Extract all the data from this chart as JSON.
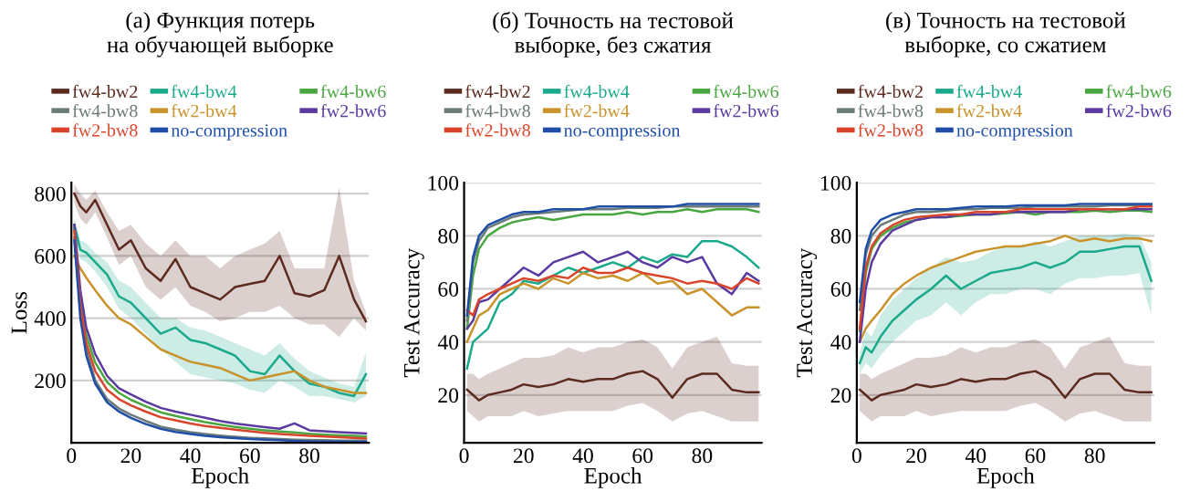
{
  "chart_data": [
    {
      "type": "line",
      "title": "(а) Функция потерь\nна обучающей выборке",
      "xlabel": "Epoch",
      "ylabel": "Loss",
      "xlim": [
        0,
        100
      ],
      "ylim": [
        0,
        835
      ],
      "xticks": [
        0,
        20,
        40,
        60,
        80
      ],
      "yticks": [
        200,
        400,
        600,
        800
      ],
      "grid": "y",
      "legend": "top",
      "x": [
        1,
        3,
        5,
        8,
        12,
        16,
        20,
        25,
        30,
        35,
        40,
        45,
        50,
        55,
        60,
        65,
        70,
        75,
        80,
        85,
        90,
        95,
        99
      ],
      "series": [
        {
          "name": "fw4-bw2",
          "color": "#5c2a1e",
          "values": [
            800,
            760,
            740,
            780,
            700,
            620,
            650,
            560,
            520,
            590,
            500,
            480,
            460,
            500,
            510,
            520,
            600,
            480,
            470,
            490,
            600,
            460,
            390
          ],
          "lower": [
            770,
            720,
            700,
            740,
            660,
            570,
            600,
            500,
            460,
            500,
            440,
            420,
            390,
            400,
            420,
            420,
            440,
            400,
            380,
            380,
            340,
            400,
            360
          ],
          "upper": [
            830,
            800,
            780,
            810,
            740,
            680,
            700,
            640,
            600,
            650,
            600,
            600,
            560,
            600,
            620,
            640,
            680,
            560,
            560,
            560,
            820,
            520,
            420
          ]
        },
        {
          "name": "fw4-bw4",
          "color": "#1aa98a",
          "values": [
            700,
            620,
            610,
            580,
            540,
            470,
            450,
            400,
            350,
            370,
            330,
            320,
            300,
            280,
            230,
            220,
            280,
            230,
            190,
            180,
            160,
            150,
            220
          ],
          "lower": [
            680,
            590,
            580,
            550,
            500,
            430,
            400,
            350,
            300,
            260,
            220,
            210,
            200,
            190,
            170,
            160,
            200,
            180,
            150,
            150,
            140,
            130,
            150
          ],
          "upper": [
            720,
            650,
            640,
            610,
            580,
            520,
            500,
            450,
            400,
            400,
            370,
            360,
            340,
            320,
            300,
            280,
            320,
            270,
            230,
            210,
            190,
            180,
            290
          ]
        },
        {
          "name": "fw4-bw6",
          "color": "#4aa640",
          "values": [
            690,
            465,
            345,
            258,
            195,
            160,
            138,
            117,
            98,
            86,
            76,
            66,
            58,
            51,
            45,
            40,
            36,
            33,
            29,
            26,
            24,
            22,
            20
          ]
        },
        {
          "name": "fw4-bw8",
          "color": "#6b7b78",
          "values": [
            660,
            420,
            300,
            200,
            140,
            110,
            90,
            70,
            52,
            42,
            34,
            28,
            23,
            19,
            16,
            14,
            12,
            10,
            9,
            8,
            7,
            7,
            7
          ]
        },
        {
          "name": "fw2-bw4",
          "color": "#c8932a",
          "values": [
            600,
            560,
            530,
            490,
            440,
            400,
            380,
            340,
            300,
            280,
            260,
            250,
            240,
            220,
            200,
            210,
            220,
            230,
            200,
            180,
            170,
            160,
            160
          ]
        },
        {
          "name": "fw2-bw6",
          "color": "#5a3aa0",
          "values": [
            700,
            490,
            370,
            285,
            215,
            175,
            155,
            132,
            112,
            100,
            90,
            80,
            70,
            62,
            56,
            50,
            45,
            62,
            40,
            37,
            34,
            32,
            30
          ]
        },
        {
          "name": "fw2-bw8",
          "color": "#d9452b",
          "values": [
            680,
            440,
            320,
            230,
            170,
            140,
            120,
            100,
            82,
            72,
            62,
            54,
            48,
            42,
            37,
            32,
            28,
            25,
            22,
            20,
            18,
            16,
            14
          ]
        },
        {
          "name": "no-compression",
          "color": "#1f4ea8",
          "values": [
            650,
            400,
            280,
            190,
            130,
            100,
            80,
            60,
            45,
            35,
            28,
            22,
            18,
            15,
            12,
            10,
            8,
            6,
            5,
            4,
            4,
            3,
            3
          ]
        }
      ]
    },
    {
      "type": "line",
      "title": "(б) Точность на тестовой\nвыборке, без сжатия",
      "xlabel": "Epoch",
      "ylabel": "Test Accuracy",
      "xlim": [
        0,
        100
      ],
      "ylim": [
        2,
        100
      ],
      "xticks": [
        0,
        20,
        40,
        60,
        80
      ],
      "yticks": [
        20,
        40,
        60,
        80,
        100
      ],
      "grid": "y",
      "legend": "top",
      "x": [
        1,
        3,
        5,
        8,
        12,
        16,
        20,
        25,
        30,
        35,
        40,
        45,
        50,
        55,
        60,
        65,
        70,
        75,
        80,
        85,
        90,
        95,
        99
      ],
      "series": [
        {
          "name": "fw4-bw2",
          "color": "#5c2a1e",
          "values": [
            22,
            20,
            18,
            20,
            21,
            22,
            24,
            23,
            24,
            26,
            25,
            26,
            26,
            28,
            29,
            26,
            19,
            26,
            28,
            28,
            22,
            21,
            21
          ],
          "lower": [
            14,
            12,
            10,
            12,
            12,
            12,
            14,
            12,
            13,
            14,
            14,
            14,
            14,
            16,
            17,
            14,
            10,
            13,
            14,
            12,
            10,
            10,
            10
          ],
          "upper": [
            28,
            28,
            26,
            28,
            30,
            32,
            34,
            34,
            35,
            38,
            36,
            38,
            38,
            40,
            41,
            38,
            30,
            38,
            40,
            42,
            32,
            31,
            31
          ]
        },
        {
          "name": "fw4-bw4",
          "color": "#1aa98a",
          "values": [
            30,
            40,
            42,
            45,
            55,
            58,
            63,
            62,
            65,
            68,
            66,
            68,
            70,
            68,
            72,
            70,
            73,
            72,
            78,
            78,
            76,
            72,
            68
          ]
        },
        {
          "name": "fw4-bw6",
          "color": "#4aa640",
          "values": [
            45,
            65,
            75,
            80,
            83,
            85,
            86,
            87,
            86,
            87,
            88,
            88,
            88,
            89,
            88,
            89,
            89,
            90,
            89,
            90,
            90,
            90,
            89
          ]
        },
        {
          "name": "fw4-bw8",
          "color": "#6b7b78",
          "values": [
            48,
            70,
            78,
            83,
            85,
            87,
            88,
            88.5,
            89,
            89.5,
            90,
            90,
            90,
            90.5,
            90.5,
            90.5,
            91,
            91,
            91,
            91,
            91,
            91,
            91
          ]
        },
        {
          "name": "fw2-bw4",
          "color": "#c8932a",
          "values": [
            40,
            45,
            50,
            52,
            58,
            60,
            62,
            60,
            64,
            62,
            66,
            64,
            65,
            63,
            66,
            62,
            63,
            58,
            60,
            55,
            50,
            53,
            53
          ]
        },
        {
          "name": "fw2-bw6",
          "color": "#5a3aa0",
          "values": [
            45,
            48,
            55,
            56,
            60,
            64,
            68,
            65,
            70,
            72,
            74,
            70,
            72,
            74,
            70,
            68,
            72,
            70,
            72,
            62,
            58,
            66,
            63
          ]
        },
        {
          "name": "fw2-bw8",
          "color": "#d9452b",
          "values": [
            52,
            50,
            56,
            58,
            60,
            62,
            64,
            63,
            65,
            64,
            68,
            66,
            66,
            68,
            66,
            65,
            64,
            62,
            63,
            62,
            60,
            64,
            62
          ]
        },
        {
          "name": "no-compression",
          "color": "#1f4ea8",
          "values": [
            50,
            72,
            80,
            84,
            86,
            88,
            89,
            89,
            90,
            90,
            90,
            91,
            91,
            91,
            91,
            91,
            91,
            92,
            92,
            92,
            92,
            92,
            92
          ]
        }
      ]
    },
    {
      "type": "line",
      "title": "(в) Точность на тестовой\nвыборке, со сжатием",
      "xlabel": "Epoch",
      "ylabel": "Test Accuracy",
      "xlim": [
        0,
        100
      ],
      "ylim": [
        2,
        100
      ],
      "xticks": [
        0,
        20,
        40,
        60,
        80
      ],
      "yticks": [
        20,
        40,
        60,
        80,
        100
      ],
      "grid": "y",
      "legend": "top",
      "x": [
        1,
        3,
        5,
        8,
        12,
        16,
        20,
        25,
        30,
        35,
        40,
        45,
        50,
        55,
        60,
        65,
        70,
        75,
        80,
        85,
        90,
        95,
        99
      ],
      "series": [
        {
          "name": "fw4-bw2",
          "color": "#5c2a1e",
          "values": [
            22,
            20,
            18,
            20,
            21,
            22,
            24,
            23,
            24,
            26,
            25,
            26,
            26,
            28,
            29,
            26,
            19,
            26,
            28,
            28,
            22,
            21,
            21
          ],
          "lower": [
            14,
            12,
            10,
            12,
            12,
            12,
            14,
            12,
            13,
            14,
            14,
            14,
            14,
            16,
            17,
            14,
            10,
            13,
            14,
            12,
            10,
            10,
            10
          ],
          "upper": [
            28,
            28,
            26,
            28,
            30,
            32,
            34,
            34,
            35,
            38,
            36,
            38,
            38,
            40,
            41,
            38,
            30,
            38,
            40,
            42,
            32,
            31,
            31
          ]
        },
        {
          "name": "fw4-bw4",
          "color": "#1aa98a",
          "values": [
            32,
            38,
            36,
            42,
            48,
            52,
            56,
            60,
            65,
            60,
            63,
            66,
            67,
            68,
            70,
            68,
            70,
            74,
            74,
            75,
            76,
            76,
            63
          ],
          "lower": [
            28,
            32,
            30,
            35,
            40,
            44,
            48,
            50,
            55,
            50,
            55,
            58,
            58,
            60,
            60,
            58,
            62,
            64,
            64,
            65,
            65,
            66,
            50
          ],
          "upper": [
            36,
            44,
            42,
            50,
            56,
            60,
            64,
            68,
            72,
            70,
            71,
            74,
            76,
            76,
            78,
            76,
            78,
            80,
            80,
            80,
            81,
            80,
            70
          ]
        },
        {
          "name": "fw4-bw6",
          "color": "#4aa640",
          "values": [
            44,
            66,
            75,
            80,
            83,
            85,
            86,
            87,
            87,
            87.5,
            88,
            88,
            88.5,
            89,
            88,
            89,
            89,
            89,
            89.5,
            89,
            89.5,
            89.5,
            89
          ]
        },
        {
          "name": "fw4-bw8",
          "color": "#6b7b78",
          "values": [
            52,
            73,
            80,
            84,
            86,
            88,
            89,
            89,
            89.5,
            90,
            90,
            90.5,
            90.5,
            90.5,
            91,
            91,
            91,
            91,
            91,
            91.5,
            91.5,
            91.5,
            91.5
          ]
        },
        {
          "name": "fw2-bw4",
          "color": "#c8932a",
          "values": [
            40,
            45,
            48,
            52,
            58,
            62,
            65,
            68,
            70,
            72,
            74,
            75,
            76,
            76,
            77,
            78,
            80,
            78,
            79,
            78,
            79,
            79,
            78
          ]
        },
        {
          "name": "fw2-bw6",
          "color": "#5a3aa0",
          "values": [
            40,
            60,
            70,
            77,
            82,
            84,
            86,
            87,
            87,
            88,
            88,
            88,
            89,
            89,
            89,
            89,
            89,
            90,
            90,
            90,
            90,
            90,
            90
          ]
        },
        {
          "name": "fw2-bw8",
          "color": "#d9452b",
          "values": [
            45,
            68,
            76,
            81,
            84,
            86,
            87,
            87.5,
            88,
            88,
            89,
            89,
            89,
            90,
            90,
            90,
            90,
            90,
            90,
            90,
            90,
            91,
            91
          ]
        },
        {
          "name": "no-compression",
          "color": "#1f4ea8",
          "values": [
            55,
            75,
            82,
            86,
            88,
            89,
            90,
            90,
            90,
            90.5,
            91,
            91,
            91,
            91.5,
            91.5,
            91.5,
            91.5,
            92,
            92,
            92,
            92,
            92,
            92
          ]
        }
      ]
    }
  ]
}
